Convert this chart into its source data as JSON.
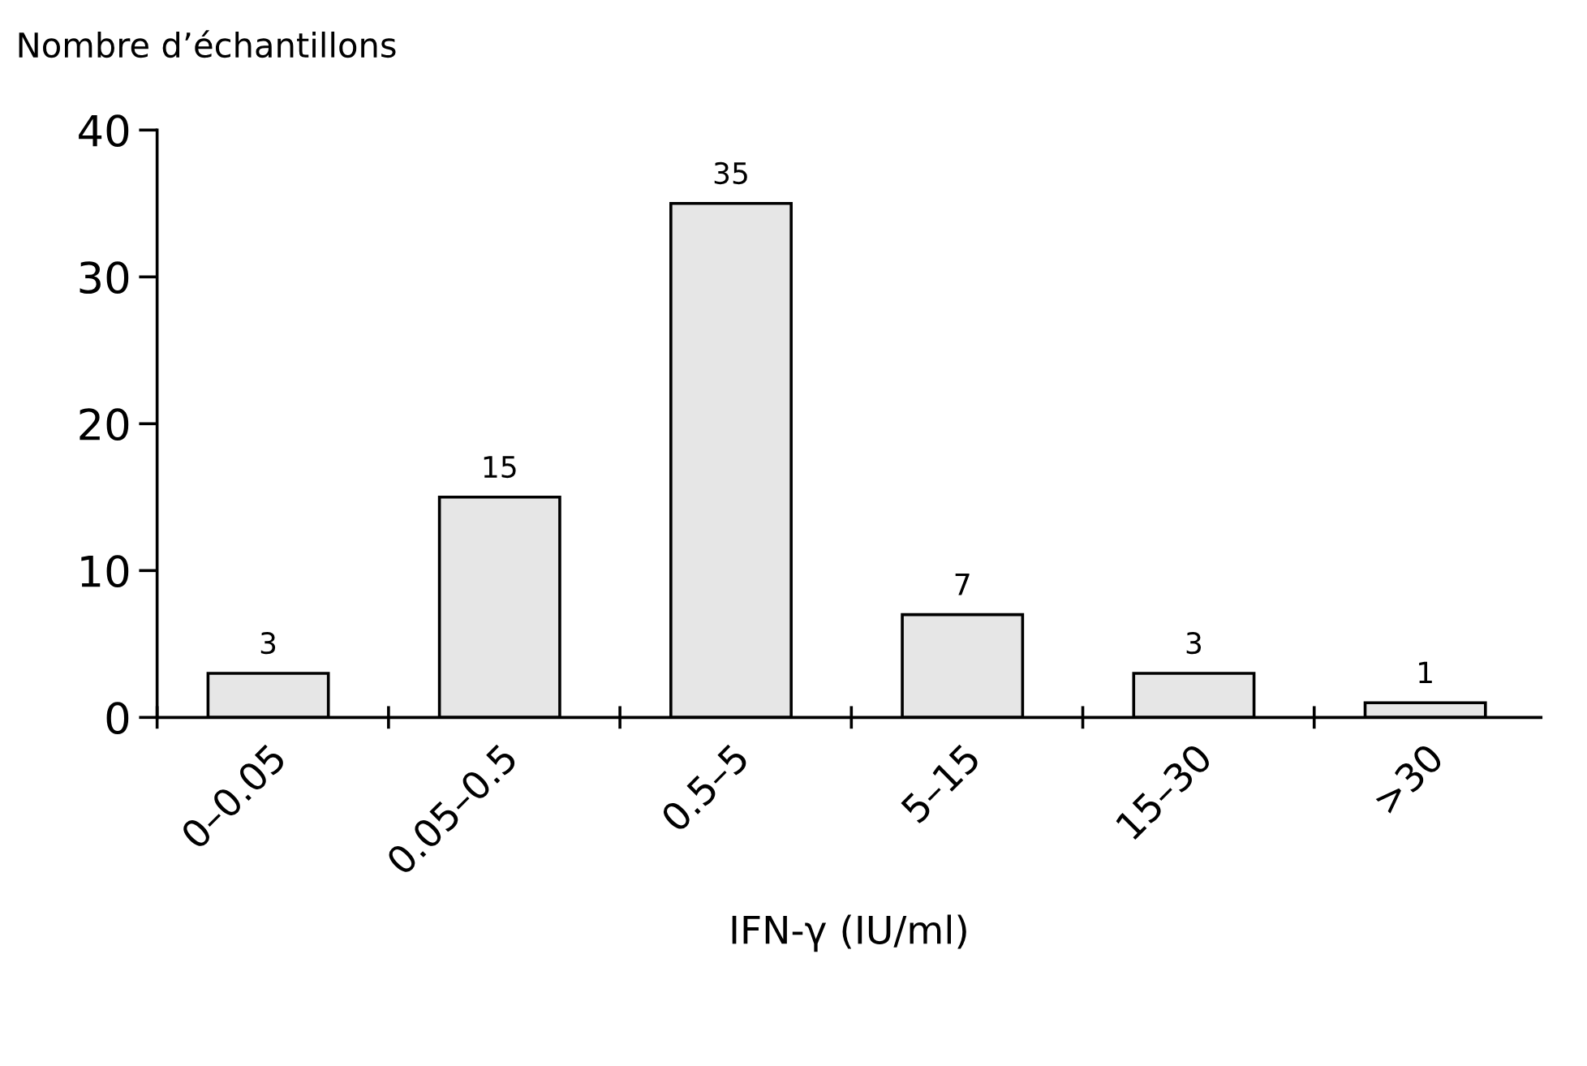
{
  "chart_data": {
    "type": "bar",
    "ylabel": "Nombre d’échantillons",
    "xlabel": "IFN-γ (IU/ml)",
    "categories": [
      "0–0.05",
      "0.05–0.5",
      "0.5–5",
      "5–15",
      "15–30",
      ">30"
    ],
    "values": [
      3,
      15,
      35,
      7,
      3,
      1
    ],
    "color": "#e6e6e6",
    "ylim": [
      0,
      40
    ],
    "yticks": [
      0,
      10,
      20,
      30,
      40
    ],
    "data_labels": true,
    "grid": false
  }
}
